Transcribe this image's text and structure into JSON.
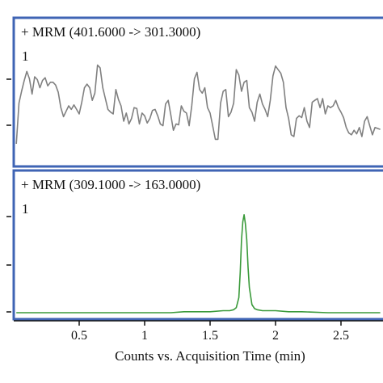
{
  "chart_data": [
    {
      "type": "line",
      "title": "+ MRM (401.6000 -> 301.3000)",
      "trace_label": "1",
      "xlim": [
        0,
        2.8
      ],
      "ylim": [
        0,
        1
      ],
      "color": "#808080",
      "series": [
        {
          "x": [
            0.02,
            0.04,
            0.06,
            0.08,
            0.1,
            0.12,
            0.14,
            0.16,
            0.18,
            0.2,
            0.22,
            0.24,
            0.26,
            0.28,
            0.3,
            0.32,
            0.34,
            0.36,
            0.38,
            0.4,
            0.42,
            0.44,
            0.46,
            0.48,
            0.5,
            0.52,
            0.54,
            0.56,
            0.58,
            0.6,
            0.62,
            0.64,
            0.66,
            0.68,
            0.7,
            0.72,
            0.74,
            0.76,
            0.78,
            0.8,
            0.82,
            0.84,
            0.86,
            0.88,
            0.9,
            0.92,
            0.94,
            0.96,
            0.98,
            1.0,
            1.02,
            1.04,
            1.06,
            1.08,
            1.1,
            1.12,
            1.14,
            1.16,
            1.18,
            1.2,
            1.22,
            1.24,
            1.26,
            1.28,
            1.3,
            1.32,
            1.34,
            1.36,
            1.38,
            1.4,
            1.42,
            1.44,
            1.46,
            1.48,
            1.5,
            1.52,
            1.54,
            1.56,
            1.58,
            1.6,
            1.62,
            1.64,
            1.66,
            1.68,
            1.7,
            1.72,
            1.74,
            1.76,
            1.78,
            1.8,
            1.82,
            1.84,
            1.86,
            1.88,
            1.9,
            1.92,
            1.94,
            1.96,
            1.98,
            2.0,
            2.02,
            2.04,
            2.06,
            2.08,
            2.1,
            2.12,
            2.14,
            2.16,
            2.18,
            2.2,
            2.22,
            2.24,
            2.26,
            2.28,
            2.3,
            2.32,
            2.34,
            2.36,
            2.38,
            2.4,
            2.42,
            2.44,
            2.46,
            2.48,
            2.5,
            2.52,
            2.54,
            2.56,
            2.58,
            2.6,
            2.62,
            2.64,
            2.66,
            2.68,
            2.7,
            2.72,
            2.74,
            2.76,
            2.78,
            2.8
          ],
          "values": [
            0.0,
            0.45,
            0.58,
            0.7,
            0.8,
            0.72,
            0.55,
            0.74,
            0.71,
            0.62,
            0.7,
            0.73,
            0.64,
            0.68,
            0.68,
            0.65,
            0.57,
            0.4,
            0.3,
            0.36,
            0.42,
            0.38,
            0.43,
            0.38,
            0.33,
            0.46,
            0.62,
            0.66,
            0.62,
            0.48,
            0.56,
            0.87,
            0.84,
            0.62,
            0.5,
            0.38,
            0.35,
            0.33,
            0.6,
            0.49,
            0.42,
            0.25,
            0.34,
            0.22,
            0.28,
            0.4,
            0.39,
            0.22,
            0.34,
            0.31,
            0.23,
            0.28,
            0.37,
            0.38,
            0.31,
            0.22,
            0.2,
            0.44,
            0.48,
            0.32,
            0.15,
            0.22,
            0.21,
            0.42,
            0.36,
            0.34,
            0.2,
            0.42,
            0.72,
            0.79,
            0.6,
            0.56,
            0.62,
            0.4,
            0.34,
            0.2,
            0.05,
            0.05,
            0.45,
            0.58,
            0.6,
            0.3,
            0.35,
            0.45,
            0.82,
            0.76,
            0.58,
            0.68,
            0.7,
            0.4,
            0.35,
            0.25,
            0.46,
            0.55,
            0.44,
            0.38,
            0.3,
            0.48,
            0.75,
            0.86,
            0.82,
            0.78,
            0.68,
            0.4,
            0.28,
            0.1,
            0.08,
            0.28,
            0.31,
            0.29,
            0.4,
            0.25,
            0.18,
            0.46,
            0.48,
            0.5,
            0.4,
            0.5,
            0.33,
            0.42,
            0.4,
            0.42,
            0.48,
            0.4,
            0.35,
            0.29,
            0.18,
            0.12,
            0.1,
            0.15,
            0.11,
            0.18,
            0.08,
            0.25,
            0.3,
            0.2,
            0.1,
            0.18,
            0.17,
            0.16
          ]
        }
      ]
    },
    {
      "type": "line",
      "title": "+ MRM (309.1000 -> 163.0000)",
      "trace_label": "1",
      "xlim": [
        0,
        2.8
      ],
      "ylim": [
        0,
        1
      ],
      "color": "#3a9a3a",
      "series": [
        {
          "x": [
            0.02,
            0.2,
            0.4,
            0.6,
            0.8,
            1.0,
            1.2,
            1.3,
            1.4,
            1.5,
            1.6,
            1.65,
            1.68,
            1.7,
            1.72,
            1.73,
            1.74,
            1.75,
            1.76,
            1.77,
            1.78,
            1.79,
            1.8,
            1.82,
            1.84,
            1.86,
            1.9,
            2.0,
            2.1,
            2.2,
            2.4,
            2.6,
            2.8
          ],
          "values": [
            0.0,
            0.0,
            0.0,
            0.0,
            0.0,
            0.0,
            0.0,
            0.01,
            0.01,
            0.01,
            0.02,
            0.02,
            0.03,
            0.05,
            0.15,
            0.4,
            0.72,
            0.9,
            0.97,
            0.88,
            0.72,
            0.45,
            0.25,
            0.08,
            0.04,
            0.03,
            0.02,
            0.02,
            0.01,
            0.01,
            0.0,
            0.0,
            0.0
          ]
        }
      ]
    }
  ],
  "x_axis": {
    "ticks": [
      0.5,
      1,
      1.5,
      2,
      2.5
    ],
    "tick_labels": [
      "0.5",
      "1",
      "1.5",
      "2",
      "2.5"
    ],
    "label": "Counts vs. Acquisition Time (min)"
  },
  "colors": {
    "panel_border": "#3f64b4",
    "axis": "#111111"
  }
}
